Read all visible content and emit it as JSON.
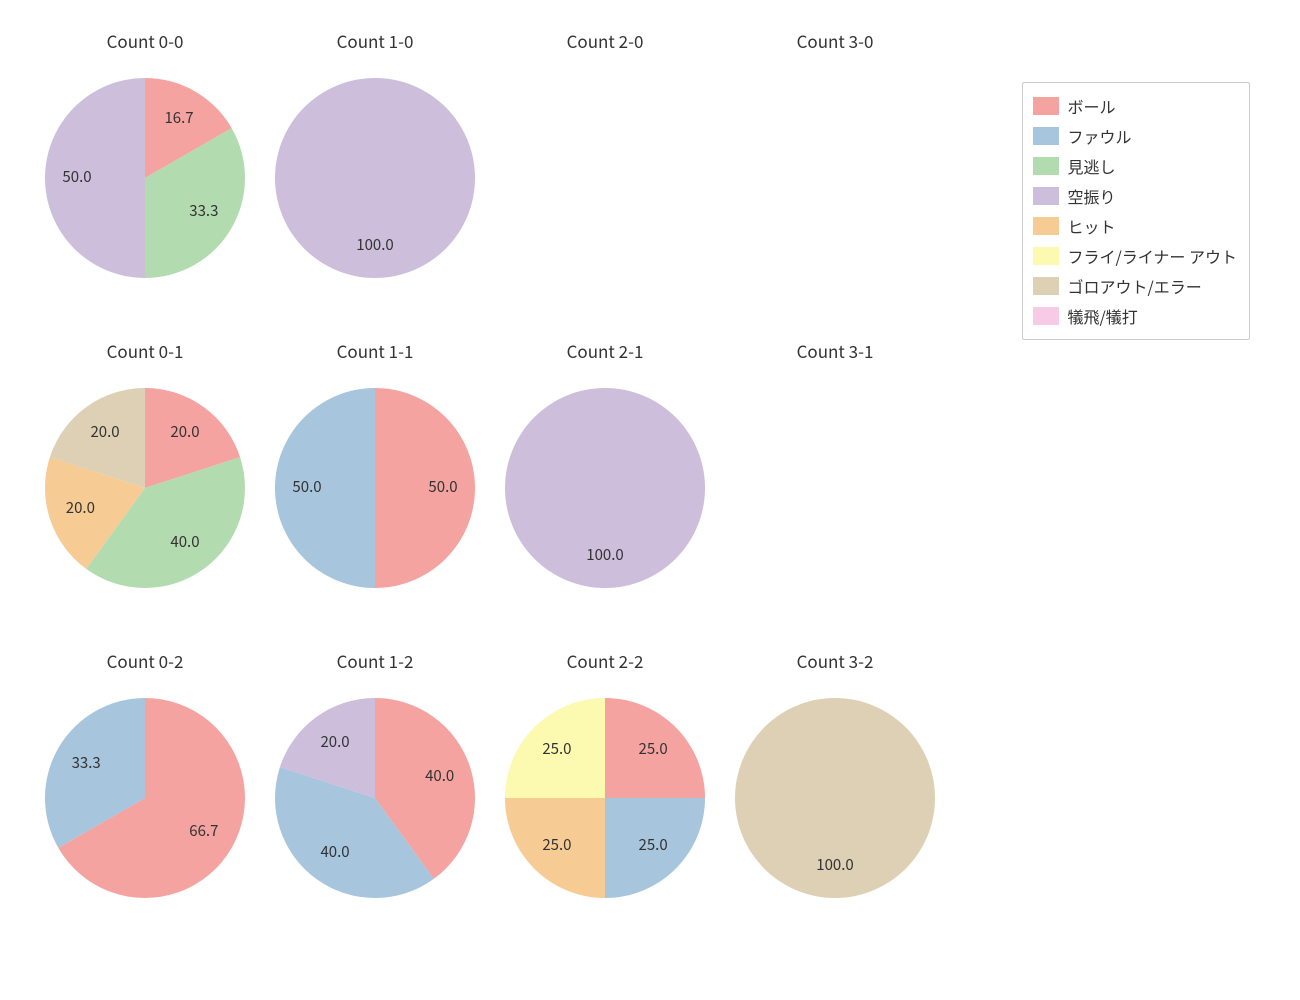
{
  "background_color": "#ffffff",
  "text_color": "#333333",
  "title_fontsize": 17,
  "label_fontsize": 15,
  "legend_fontsize": 16,
  "pie_radius": 100,
  "label_radius_factor": 0.68,
  "start_angle_deg": 90,
  "direction": "clockwise",
  "categories": [
    {
      "key": "ball",
      "label": "ボール",
      "color": "#f4a3a0"
    },
    {
      "key": "foul",
      "label": "ファウル",
      "color": "#a7c5dd"
    },
    {
      "key": "look",
      "label": "見逃し",
      "color": "#b3dbb0"
    },
    {
      "key": "swing",
      "label": "空振り",
      "color": "#cdbedc"
    },
    {
      "key": "hit",
      "label": "ヒット",
      "color": "#f6cb94"
    },
    {
      "key": "flyout",
      "label": "フライ/ライナー アウト",
      "color": "#fbfab0"
    },
    {
      "key": "groundout",
      "label": "ゴロアウト/エラー",
      "color": "#ddd0b4"
    },
    {
      "key": "sac",
      "label": "犠飛/犠打",
      "color": "#f7cae5"
    }
  ],
  "grid": {
    "rows": 3,
    "cols": 4
  },
  "panels": [
    {
      "row": 0,
      "col": 0,
      "title": "Count 0-0",
      "slices": [
        {
          "cat": "ball",
          "value": 16.7
        },
        {
          "cat": "look",
          "value": 33.3
        },
        {
          "cat": "swing",
          "value": 50.0
        }
      ]
    },
    {
      "row": 0,
      "col": 1,
      "title": "Count 1-0",
      "slices": [
        {
          "cat": "swing",
          "value": 100.0
        }
      ]
    },
    {
      "row": 0,
      "col": 2,
      "title": "Count 2-0",
      "slices": []
    },
    {
      "row": 0,
      "col": 3,
      "title": "Count 3-0",
      "slices": []
    },
    {
      "row": 1,
      "col": 0,
      "title": "Count 0-1",
      "slices": [
        {
          "cat": "ball",
          "value": 20.0
        },
        {
          "cat": "look",
          "value": 40.0
        },
        {
          "cat": "hit",
          "value": 20.0
        },
        {
          "cat": "groundout",
          "value": 20.0
        }
      ]
    },
    {
      "row": 1,
      "col": 1,
      "title": "Count 1-1",
      "slices": [
        {
          "cat": "ball",
          "value": 50.0
        },
        {
          "cat": "foul",
          "value": 50.0
        }
      ]
    },
    {
      "row": 1,
      "col": 2,
      "title": "Count 2-1",
      "slices": [
        {
          "cat": "swing",
          "value": 100.0
        }
      ]
    },
    {
      "row": 1,
      "col": 3,
      "title": "Count 3-1",
      "slices": []
    },
    {
      "row": 2,
      "col": 0,
      "title": "Count 0-2",
      "slices": [
        {
          "cat": "ball",
          "value": 66.7
        },
        {
          "cat": "foul",
          "value": 33.3
        }
      ]
    },
    {
      "row": 2,
      "col": 1,
      "title": "Count 1-2",
      "slices": [
        {
          "cat": "ball",
          "value": 40.0
        },
        {
          "cat": "foul",
          "value": 40.0
        },
        {
          "cat": "swing",
          "value": 20.0
        }
      ]
    },
    {
      "row": 2,
      "col": 2,
      "title": "Count 2-2",
      "slices": [
        {
          "cat": "ball",
          "value": 25.0
        },
        {
          "cat": "foul",
          "value": 25.0
        },
        {
          "cat": "hit",
          "value": 25.0
        },
        {
          "cat": "flyout",
          "value": 25.0
        }
      ]
    },
    {
      "row": 2,
      "col": 3,
      "title": "Count 3-2",
      "slices": [
        {
          "cat": "groundout",
          "value": 100.0
        }
      ]
    }
  ],
  "legend": {
    "border_color": "#cccccc",
    "swatch_w": 26,
    "swatch_h": 18
  }
}
